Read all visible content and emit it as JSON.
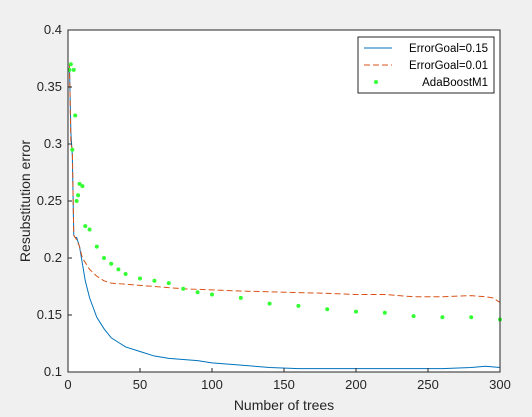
{
  "chart_data": {
    "type": "line",
    "title": "",
    "xlabel": "Number of trees",
    "ylabel": "Resubstitution error",
    "xlim": [
      0,
      300
    ],
    "ylim": [
      0.1,
      0.4
    ],
    "xticks": [
      "0",
      "50",
      "100",
      "150",
      "200",
      "250",
      "300"
    ],
    "yticks": [
      "0.1",
      "0.15",
      "0.2",
      "0.25",
      "0.3",
      "0.35",
      "0.4"
    ],
    "grid": false,
    "legend_position": "top-right",
    "series": [
      {
        "name": "ErrorGoal=0.15",
        "style": "solid",
        "color": "#0072BD",
        "x": [
          1,
          2,
          3,
          4,
          5,
          6,
          8,
          10,
          12,
          15,
          20,
          25,
          30,
          35,
          40,
          50,
          60,
          70,
          80,
          90,
          100,
          120,
          140,
          160,
          180,
          200,
          220,
          240,
          260,
          280,
          290,
          300
        ],
        "y": [
          0.37,
          0.31,
          0.29,
          0.22,
          0.218,
          0.218,
          0.21,
          0.195,
          0.18,
          0.165,
          0.148,
          0.138,
          0.13,
          0.126,
          0.122,
          0.118,
          0.114,
          0.112,
          0.111,
          0.11,
          0.108,
          0.106,
          0.104,
          0.103,
          0.103,
          0.103,
          0.103,
          0.103,
          0.103,
          0.104,
          0.105,
          0.104
        ]
      },
      {
        "name": "ErrorGoal=0.01",
        "style": "dashed",
        "color": "#D95319",
        "x": [
          1,
          2,
          3,
          4,
          5,
          6,
          8,
          10,
          12,
          15,
          20,
          25,
          30,
          40,
          50,
          60,
          80,
          100,
          120,
          150,
          180,
          200,
          220,
          240,
          260,
          280,
          290,
          295,
          300
        ],
        "y": [
          0.37,
          0.3,
          0.296,
          0.22,
          0.218,
          0.216,
          0.21,
          0.2,
          0.196,
          0.19,
          0.184,
          0.18,
          0.178,
          0.177,
          0.176,
          0.175,
          0.173,
          0.172,
          0.171,
          0.17,
          0.169,
          0.168,
          0.168,
          0.166,
          0.166,
          0.167,
          0.166,
          0.165,
          0.161
        ]
      },
      {
        "name": "AdaBoostM1",
        "style": "markers",
        "color": "#33FF33",
        "x": [
          1,
          2,
          3,
          4,
          5,
          6,
          7,
          8,
          10,
          12,
          15,
          20,
          25,
          30,
          35,
          40,
          50,
          60,
          70,
          80,
          90,
          100,
          120,
          140,
          160,
          180,
          200,
          220,
          240,
          260,
          280,
          300
        ],
        "y": [
          0.365,
          0.37,
          0.295,
          0.365,
          0.325,
          0.25,
          0.255,
          0.265,
          0.263,
          0.228,
          0.225,
          0.21,
          0.2,
          0.195,
          0.19,
          0.186,
          0.182,
          0.18,
          0.178,
          0.173,
          0.17,
          0.168,
          0.165,
          0.16,
          0.158,
          0.155,
          0.153,
          0.152,
          0.149,
          0.148,
          0.148,
          0.146
        ]
      }
    ]
  }
}
